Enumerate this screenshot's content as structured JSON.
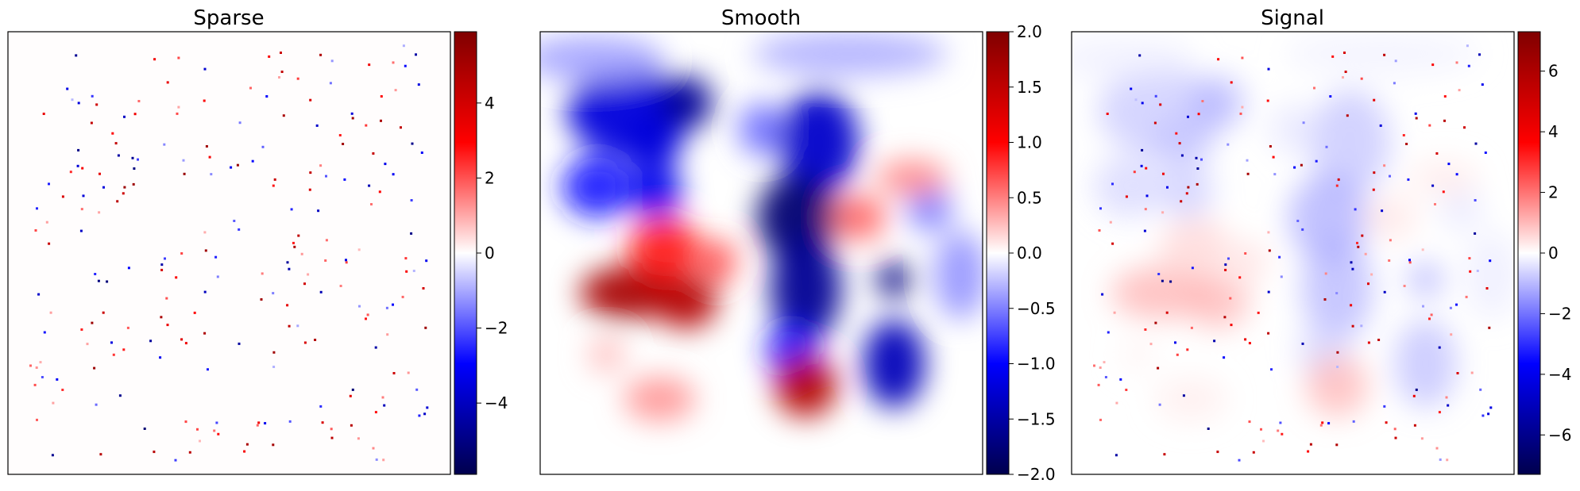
{
  "chart_data": [
    {
      "type": "heatmap",
      "title": "Sparse",
      "colormap": "seismic",
      "colorbar": {
        "range": [
          -5.9,
          5.9
        ],
        "ticks": [
          "4",
          "2",
          "0",
          "−2",
          "−4"
        ],
        "tick_values": [
          4,
          2,
          0,
          -2,
          -4
        ]
      },
      "content": "sparse scattered spikes (±1 to ±5) on a near-zero background",
      "axes_ticks": false
    },
    {
      "type": "heatmap",
      "title": "Smooth",
      "colormap": "seismic",
      "colorbar": {
        "range": [
          -2.0,
          2.0
        ],
        "ticks": [
          "2.0",
          "1.5",
          "1.0",
          "0.5",
          "0.0",
          "−0.5",
          "−1.0",
          "−1.5",
          "−2.0"
        ],
        "tick_values": [
          2.0,
          1.5,
          1.0,
          0.5,
          0.0,
          -0.5,
          -1.0,
          -1.5,
          -2.0
        ]
      },
      "content": "smooth field with large negative (blue) lobes and positive (red) lobes",
      "axes_ticks": false
    },
    {
      "type": "heatmap",
      "title": "Signal",
      "colormap": "seismic",
      "colorbar": {
        "range": [
          -7.3,
          7.3
        ],
        "ticks": [
          "6",
          "4",
          "2",
          "0",
          "−2",
          "−4",
          "−6"
        ],
        "tick_values": [
          6,
          4,
          2,
          0,
          -2,
          -4,
          -6
        ]
      },
      "content": "sum of sparse spikes and smooth field",
      "axes_ticks": false
    }
  ],
  "colors": {
    "cmap_low": "#00004d",
    "cmap_blue": "#0000ff",
    "cmap_mid": "#ffffff",
    "cmap_red": "#ff0000",
    "cmap_high": "#800000"
  }
}
